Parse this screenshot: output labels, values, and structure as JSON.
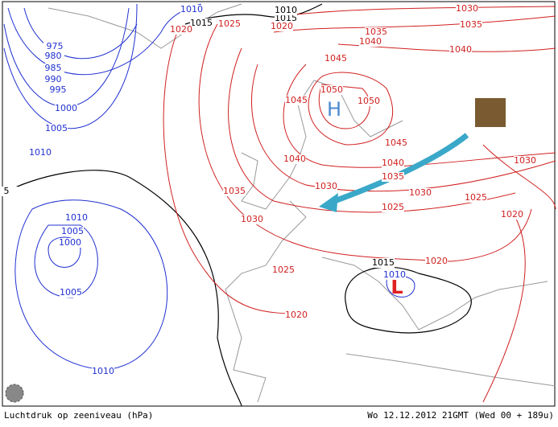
{
  "caption": "Luchtdruk op zeeniveau (hPa)",
  "timestamp": "Wo 12.12.2012 21GMT (Wed 00 + 189u)",
  "pressure_centers": [
    {
      "label": "H"
    },
    {
      "label": "L"
    }
  ],
  "isobar_labels": {
    "blue": [
      1010,
      975,
      980,
      985,
      990,
      995,
      1000,
      1005,
      1010,
      1010,
      1005,
      1000,
      1005,
      1010,
      1010
    ],
    "black": [
      1015,
      1015,
      1010,
      1015,
      5
    ],
    "red": [
      1020,
      1025,
      1020,
      1030,
      1035,
      1035,
      1040,
      1040,
      1045,
      1050,
      1045,
      1050,
      1045,
      1040,
      1040,
      1035,
      1030,
      1030,
      1035,
      1030,
      1025,
      1025,
      1030,
      1020,
      1020,
      1025,
      1020
    ]
  }
}
